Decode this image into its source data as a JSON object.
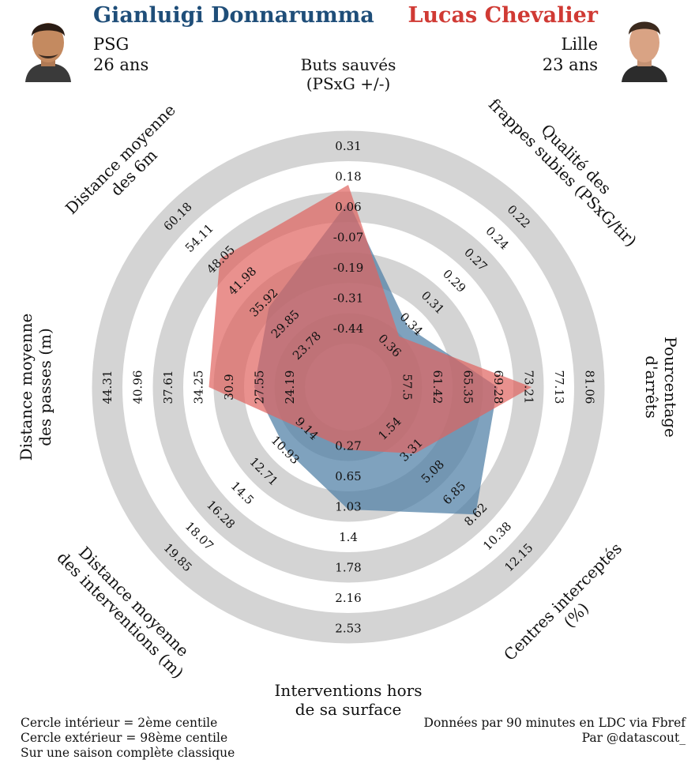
{
  "player1": {
    "name": "Gianluigi Donnarumma",
    "club": "PSG",
    "age": "26 ans",
    "color": "#1f4e79",
    "fill": "#4e7ea5"
  },
  "player2": {
    "name": "Lucas Chevalier",
    "club": "Lille",
    "age": "23 ans",
    "color": "#d03a34",
    "fill": "#e0625e"
  },
  "footer": {
    "left1": "Cercle intérieur = 2ème centile",
    "left2": "Cercle extérieur = 98ème centile",
    "left3": "Sur une saison complète classique",
    "right1": "Données par 90 minutes en LDC via Fbref",
    "right2": "Par @datascout_"
  },
  "chart_data": {
    "type": "radar",
    "ring_colors": [
      "#d4d4d4",
      "#ffffff"
    ],
    "axes": [
      {
        "label": [
          "Buts sauvés",
          "(PSxG +/-)"
        ],
        "ticks": [
          "-0.44",
          "-0.31",
          "-0.19",
          "-0.07",
          "0.06",
          "0.18",
          "0.31"
        ]
      },
      {
        "label": [
          "Qualité des",
          "frappes subies (PSxG/tir)"
        ],
        "ticks": [
          "0.36",
          "0.34",
          "0.31",
          "0.29",
          "0.27",
          "0.24",
          "0.22"
        ]
      },
      {
        "label": [
          "Pourcentage",
          "d'arrêts"
        ],
        "ticks": [
          "57.5",
          "61.42",
          "65.35",
          "69.28",
          "73.21",
          "77.13",
          "81.06"
        ]
      },
      {
        "label": [
          "Centres interceptés",
          "(%)"
        ],
        "ticks": [
          "1.54",
          "3.31",
          "5.08",
          "6.85",
          "8.62",
          "10.38",
          "12.15"
        ]
      },
      {
        "label": [
          "Interventions hors",
          "de sa surface"
        ],
        "ticks": [
          "0.27",
          "0.65",
          "1.03",
          "1.4",
          "1.78",
          "2.16",
          "2.53"
        ]
      },
      {
        "label": [
          "Distance moyenne",
          "des interventions (m)"
        ],
        "ticks": [
          "9.14",
          "10.93",
          "12.71",
          "14.5",
          "16.28",
          "18.07",
          "19.85"
        ]
      },
      {
        "label": [
          "Distance moyenne",
          "des passes (m)"
        ],
        "ticks": [
          "24.19",
          "27.55",
          "30.9",
          "34.25",
          "37.61",
          "40.96",
          "44.31"
        ]
      },
      {
        "label": [
          "Distance moyenne",
          "des 6m"
        ],
        "ticks": [
          "23.78",
          "29.85",
          "35.92",
          "41.98",
          "48.05",
          "54.11",
          "60.18"
        ]
      }
    ],
    "series": [
      {
        "name": "Gianluigi Donnarumma",
        "values": [
          0.08,
          0.34,
          69.2,
          8.6,
          1.06,
          10.9,
          28.1,
          34.5
        ]
      },
      {
        "name": "Lucas Chevalier",
        "values": [
          0.15,
          0.35,
          73.6,
          3.6,
          0.32,
          9.3,
          33.1,
          48.3
        ]
      }
    ]
  }
}
